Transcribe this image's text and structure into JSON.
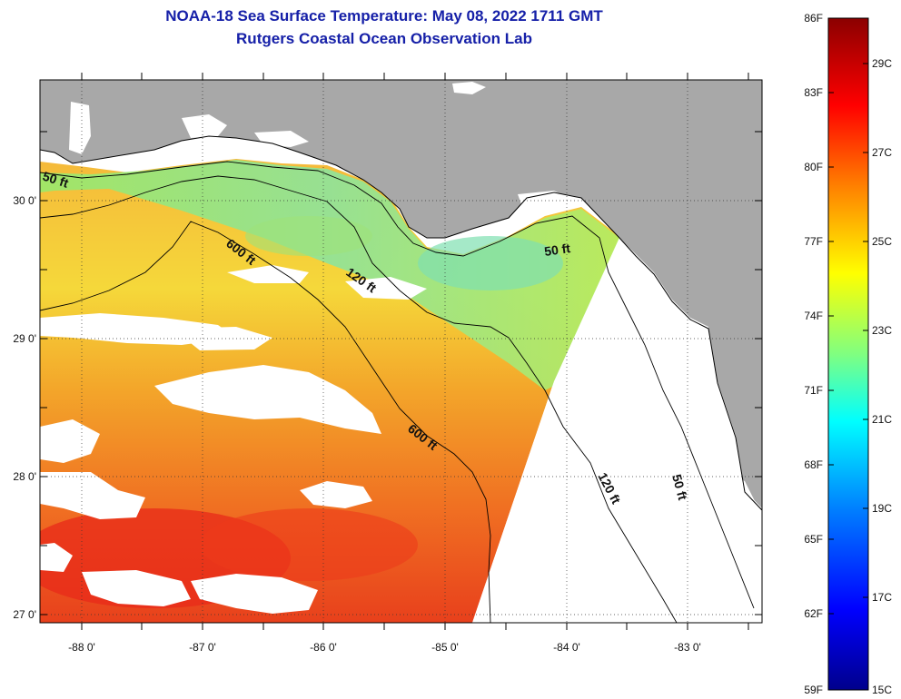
{
  "title": {
    "line1": "NOAA-18 Sea Surface Temperature:  May 08, 2022 1711 GMT",
    "line2": "Rutgers Coastal Ocean Observation Lab"
  },
  "map": {
    "lat_labels": [
      "30 0'",
      "29 0'",
      "28 0'",
      "27 0'"
    ],
    "lat_values": [
      30,
      29,
      28,
      27
    ],
    "lon_labels": [
      "-88 0'",
      "-87 0'",
      "-86 0'",
      "-85 0'",
      "-84 0'",
      "-83 0'"
    ],
    "lon_values": [
      -88,
      -87,
      -86,
      -85,
      -84,
      -83
    ],
    "lat_range": [
      26.95,
      30.85
    ],
    "lon_range": [
      -88.35,
      -82.45
    ],
    "contour_labels": [
      "50 ft",
      "600 ft",
      "120 ft",
      "50 ft",
      "600 ft",
      "120 ft",
      "50 ft"
    ],
    "colors": {
      "land": "#a8a8a8",
      "no_data": "#ffffff",
      "frame": "#000000"
    }
  },
  "colorbar": {
    "f_labels": [
      "86F",
      "83F",
      "80F",
      "77F",
      "74F",
      "71F",
      "68F",
      "65F",
      "62F",
      "59F"
    ],
    "c_labels": [
      "29C",
      "27C",
      "25C",
      "23C",
      "21C",
      "19C",
      "17C",
      "15C"
    ],
    "stops": [
      "#00008c",
      "#0000ff",
      "#0080ff",
      "#00ffff",
      "#80ff80",
      "#ffff00",
      "#ff8000",
      "#ff0000",
      "#8b0000"
    ]
  }
}
